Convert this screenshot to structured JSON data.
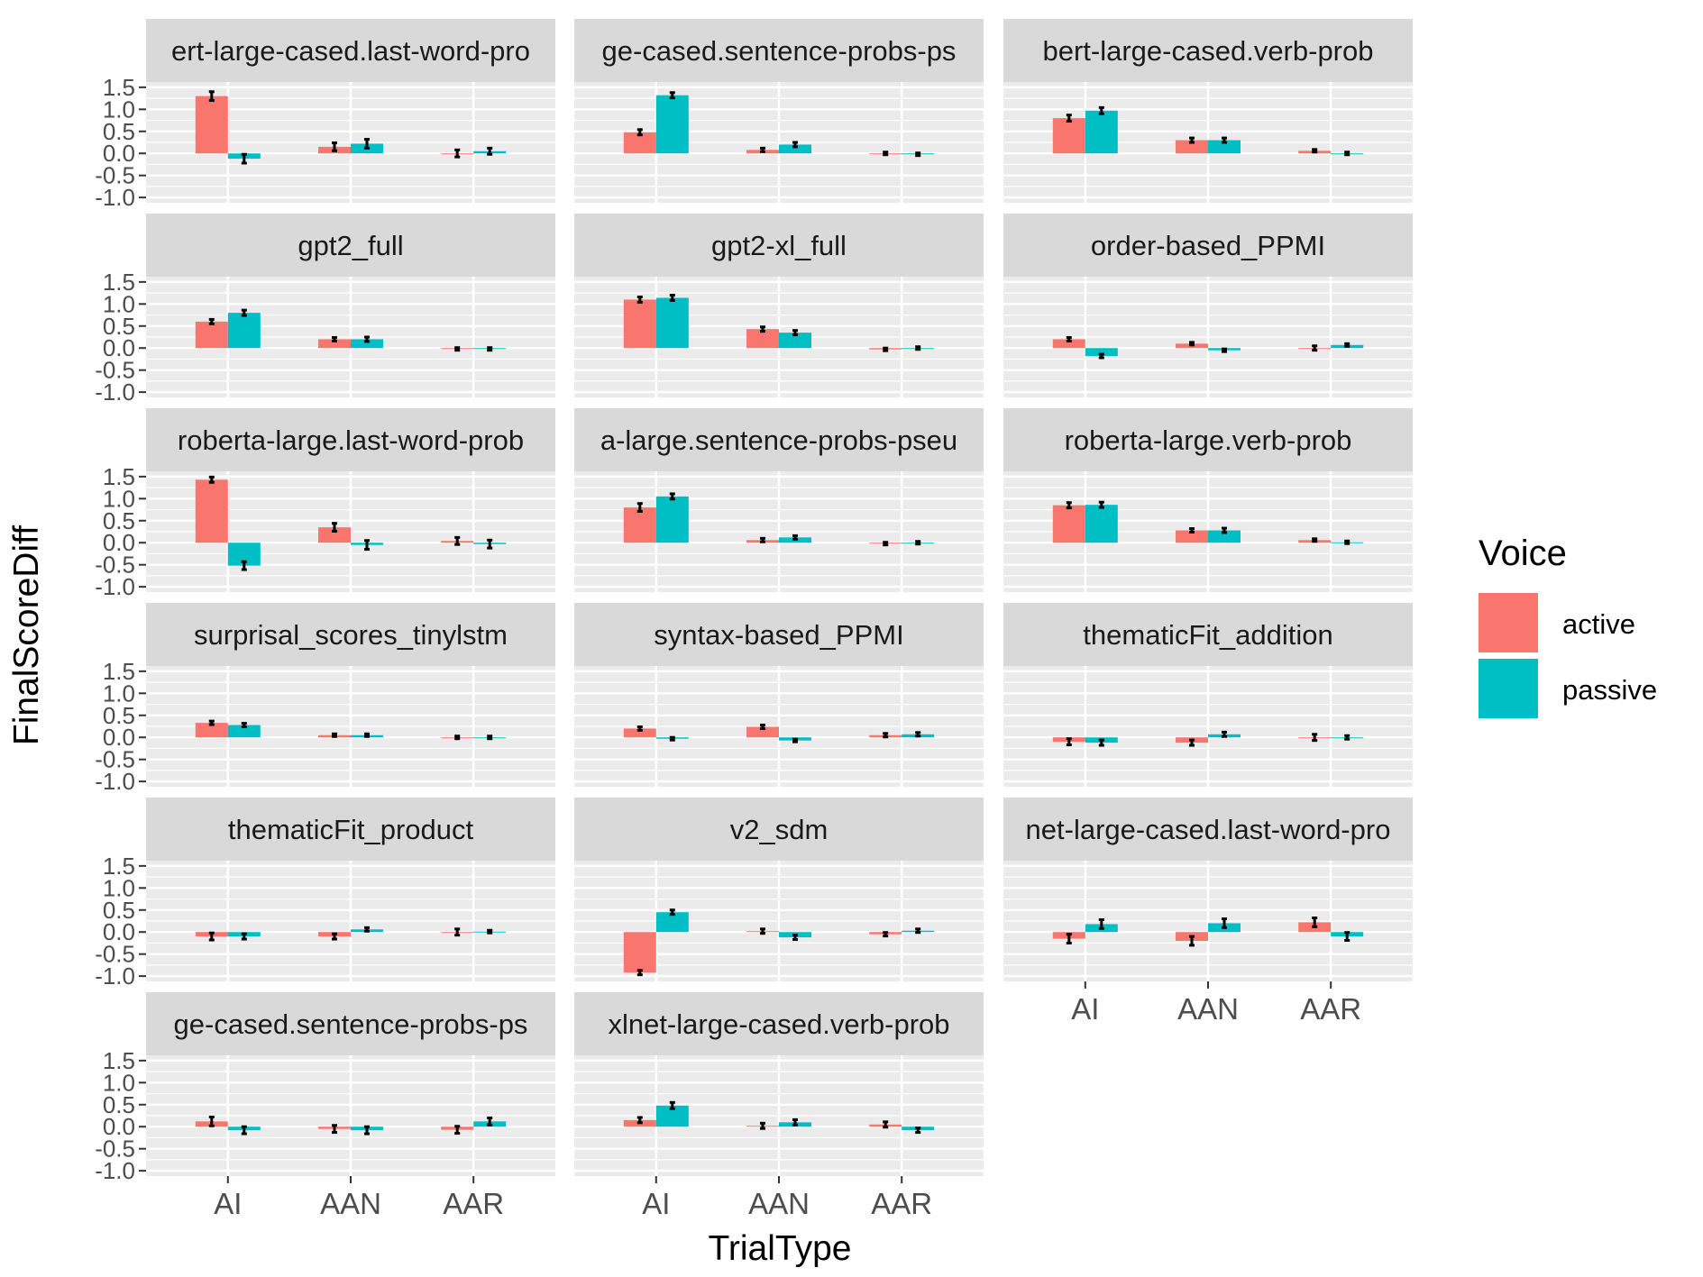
{
  "chart_data": {
    "type": "bar",
    "layout": "facet-wrap",
    "ncol": 3,
    "xlabel": "TrialType",
    "ylabel": "FinalScoreDiff",
    "categories": [
      "AI",
      "AAN",
      "AAR"
    ],
    "ylim": [
      -1.0,
      1.5
    ],
    "yticks": [
      -1.0,
      -0.5,
      0.0,
      0.5,
      1.0,
      1.5
    ],
    "ytick_labels": [
      "-1.0",
      "-0.5",
      "0.0",
      "0.5",
      "1.0",
      "1.5"
    ],
    "grid": true,
    "legend": {
      "title": "Voice",
      "position": "right",
      "entries": [
        {
          "name": "active",
          "color": "#F8766D"
        },
        {
          "name": "passive",
          "color": "#00BFC4"
        }
      ]
    },
    "series_colors": {
      "active": "#F8766D",
      "passive": "#00BFC4"
    },
    "panels": [
      {
        "title": "bert-large-cased.last-word-probs",
        "strip_text": "ert-large-cased.last-word-pro",
        "active": [
          1.3,
          0.15,
          0.0
        ],
        "passive": [
          -0.12,
          0.22,
          0.05
        ],
        "active_err": [
          0.1,
          0.09,
          0.08
        ],
        "passive_err": [
          0.1,
          0.1,
          0.07
        ]
      },
      {
        "title": "bert-large-cased.sentence-probs-pseudolog",
        "strip_text": "ge-cased.sentence-probs-ps",
        "active": [
          0.48,
          0.08,
          0.0
        ],
        "passive": [
          1.32,
          0.2,
          -0.02
        ],
        "active_err": [
          0.06,
          0.04,
          0.03
        ],
        "passive_err": [
          0.06,
          0.05,
          0.03
        ]
      },
      {
        "title": "bert-large-cased.verb-prob",
        "strip_text": "bert-large-cased.verb-prob",
        "active": [
          0.8,
          0.3,
          0.06
        ],
        "passive": [
          0.97,
          0.3,
          0.0
        ],
        "active_err": [
          0.07,
          0.05,
          0.03
        ],
        "passive_err": [
          0.07,
          0.05,
          0.03
        ]
      },
      {
        "title": "gpt2_full",
        "strip_text": "gpt2_full",
        "active": [
          0.6,
          0.2,
          -0.02
        ],
        "passive": [
          0.8,
          0.2,
          -0.02
        ],
        "active_err": [
          0.05,
          0.04,
          0.03
        ],
        "passive_err": [
          0.06,
          0.05,
          0.03
        ]
      },
      {
        "title": "gpt2-xl_full",
        "strip_text": "gpt2-xl_full",
        "active": [
          1.1,
          0.43,
          -0.03
        ],
        "passive": [
          1.14,
          0.35,
          0.0
        ],
        "active_err": [
          0.06,
          0.05,
          0.03
        ],
        "passive_err": [
          0.06,
          0.05,
          0.03
        ]
      },
      {
        "title": "order-based_PPMI",
        "strip_text": "order-based_PPMI",
        "active": [
          0.2,
          0.1,
          0.0
        ],
        "passive": [
          -0.18,
          -0.05,
          0.07
        ],
        "active_err": [
          0.04,
          0.03,
          0.05
        ],
        "passive_err": [
          0.04,
          0.03,
          0.03
        ]
      },
      {
        "title": "roberta-large.last-word-probs",
        "strip_text": "roberta-large.last-word-prob",
        "active": [
          1.43,
          0.35,
          0.04
        ],
        "passive": [
          -0.52,
          -0.05,
          -0.03
        ],
        "active_err": [
          0.06,
          0.09,
          0.08
        ],
        "passive_err": [
          0.09,
          0.1,
          0.09
        ]
      },
      {
        "title": "roberta-large.sentence-probs-pseudolog",
        "strip_text": "a-large.sentence-probs-pseu",
        "active": [
          0.8,
          0.06,
          -0.02
        ],
        "passive": [
          1.05,
          0.12,
          0.0
        ],
        "active_err": [
          0.09,
          0.04,
          0.03
        ],
        "passive_err": [
          0.06,
          0.04,
          0.03
        ]
      },
      {
        "title": "roberta-large.verb-prob",
        "strip_text": "roberta-large.verb-prob",
        "active": [
          0.85,
          0.28,
          0.06
        ],
        "passive": [
          0.86,
          0.28,
          0.01
        ],
        "active_err": [
          0.06,
          0.04,
          0.03
        ],
        "passive_err": [
          0.06,
          0.05,
          0.03
        ]
      },
      {
        "title": "surprisal_scores_tinylstm",
        "strip_text": "surprisal_scores_tinylstm",
        "active": [
          0.33,
          0.05,
          0.0
        ],
        "passive": [
          0.28,
          0.05,
          0.0
        ],
        "active_err": [
          0.04,
          0.03,
          0.03
        ],
        "passive_err": [
          0.04,
          0.03,
          0.03
        ]
      },
      {
        "title": "syntax-based_PPMI",
        "strip_text": "syntax-based_PPMI",
        "active": [
          0.2,
          0.24,
          0.05
        ],
        "passive": [
          -0.03,
          -0.07,
          0.07
        ],
        "active_err": [
          0.04,
          0.04,
          0.04
        ],
        "passive_err": [
          0.03,
          0.03,
          0.04
        ]
      },
      {
        "title": "thematicFit_addition",
        "strip_text": "thematicFit_addition",
        "active": [
          -0.1,
          -0.12,
          0.0
        ],
        "passive": [
          -0.12,
          0.07,
          0.0
        ],
        "active_err": [
          0.07,
          0.06,
          0.07
        ],
        "passive_err": [
          0.06,
          0.05,
          0.04
        ]
      },
      {
        "title": "thematicFit_product",
        "strip_text": "thematicFit_product",
        "active": [
          -0.1,
          -0.1,
          0.0
        ],
        "passive": [
          -0.1,
          0.06,
          0.01
        ],
        "active_err": [
          0.08,
          0.06,
          0.07
        ],
        "passive_err": [
          0.06,
          0.04,
          0.03
        ]
      },
      {
        "title": "v2_sdm",
        "strip_text": "v2_sdm",
        "active": [
          -0.92,
          0.02,
          -0.05
        ],
        "passive": [
          0.45,
          -0.12,
          0.03
        ],
        "active_err": [
          0.05,
          0.05,
          0.04
        ],
        "passive_err": [
          0.05,
          0.05,
          0.04
        ]
      },
      {
        "title": "xlnet-large-cased.last-word-probs",
        "strip_text": "net-large-cased.last-word-pro",
        "active": [
          -0.15,
          -0.2,
          0.22
        ],
        "passive": [
          0.18,
          0.2,
          -0.1
        ],
        "active_err": [
          0.1,
          0.1,
          0.1
        ],
        "passive_err": [
          0.1,
          0.1,
          0.09
        ]
      },
      {
        "title": "xlnet-large-cased.sentence-probs-pseudolog",
        "strip_text": "ge-cased.sentence-probs-ps",
        "active": [
          0.12,
          -0.05,
          -0.07
        ],
        "passive": [
          -0.08,
          -0.08,
          0.12
        ],
        "active_err": [
          0.1,
          0.08,
          0.08
        ],
        "passive_err": [
          0.08,
          0.08,
          0.08
        ]
      },
      {
        "title": "xlnet-large-cased.verb-prob",
        "strip_text": "xlnet-large-cased.verb-prob",
        "active": [
          0.15,
          0.02,
          0.05
        ],
        "passive": [
          0.48,
          0.1,
          -0.08
        ],
        "active_err": [
          0.06,
          0.06,
          0.06
        ],
        "passive_err": [
          0.07,
          0.06,
          0.05
        ]
      }
    ]
  }
}
